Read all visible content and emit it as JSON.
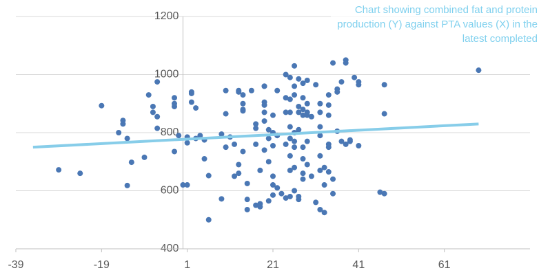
{
  "chart_data": {
    "type": "scatter",
    "annotation": "Chart showing combined fat and protein production (Y) against PTA values (X) in the latest completed",
    "xlim": [
      -39,
      81
    ],
    "xticks": [
      -39,
      -19,
      1,
      21,
      41,
      61
    ],
    "ylim": [
      400,
      1200
    ],
    "yticks": [
      400,
      600,
      800,
      1000,
      1200
    ],
    "grid": true,
    "series": [
      {
        "color": "#4a77b4",
        "x": [
          -29,
          -24,
          -19,
          -15,
          -14,
          -14,
          -13,
          -13,
          -12,
          -9,
          -8,
          -7,
          -7,
          -6,
          -6,
          -6,
          -2,
          -2,
          -2,
          -2,
          0,
          -1,
          1,
          1,
          1,
          2,
          2,
          2,
          3,
          3,
          4,
          5,
          5,
          6,
          6,
          9,
          9,
          10,
          10,
          10,
          11,
          12,
          12,
          13,
          13,
          13,
          13,
          14,
          14,
          14,
          14,
          14,
          15,
          15,
          15,
          16,
          17,
          17,
          17,
          17,
          18,
          18,
          18,
          19,
          19,
          19,
          19,
          19,
          19,
          19,
          20,
          20,
          20,
          20,
          21,
          21,
          21,
          21,
          21,
          21,
          22,
          22,
          22,
          23,
          24,
          24,
          24,
          24,
          24,
          25,
          25,
          25,
          25,
          25,
          25,
          25,
          25,
          26,
          26,
          26,
          26,
          26,
          26,
          26,
          26,
          27,
          27,
          27,
          27,
          27,
          27,
          28,
          28,
          28,
          28,
          28,
          28,
          28,
          28,
          29,
          29,
          29,
          29,
          29,
          29,
          30,
          30,
          31,
          31,
          32,
          32,
          32,
          32,
          32,
          32,
          32,
          33,
          33,
          33,
          34,
          34,
          34,
          34,
          34,
          34,
          35,
          35,
          35,
          36,
          36,
          36,
          37,
          37,
          38,
          38,
          38,
          39,
          39,
          40,
          41,
          41,
          41,
          46,
          47,
          47,
          47,
          69
        ],
        "values": [
          672,
          660,
          893,
          800,
          830,
          842,
          780,
          618,
          698,
          715,
          930,
          890,
          870,
          975,
          855,
          815,
          920,
          890,
          900,
          735,
          620,
          790,
          785,
          765,
          620,
          940,
          935,
          905,
          885,
          780,
          790,
          775,
          710,
          652,
          500,
          572,
          795,
          750,
          865,
          945,
          785,
          760,
          650,
          945,
          940,
          690,
          660,
          900,
          880,
          875,
          930,
          735,
          570,
          625,
          535,
          945,
          830,
          815,
          760,
          550,
          555,
          545,
          670,
          960,
          960,
          905,
          895,
          870,
          840,
          740,
          810,
          780,
          700,
          565,
          860,
          800,
          755,
          650,
          620,
          585,
          945,
          790,
          610,
          590,
          1000,
          920,
          870,
          760,
          575,
          990,
          915,
          870,
          820,
          780,
          720,
          670,
          580,
          1030,
          960,
          930,
          800,
          770,
          750,
          680,
          600,
          985,
          890,
          870,
          810,
          580,
          570,
          970,
          920,
          880,
          860,
          750,
          710,
          660,
          640,
          980,
          900,
          870,
          860,
          770,
          690,
          855,
          650,
          965,
          560,
          900,
          870,
          820,
          790,
          720,
          670,
          535,
          680,
          620,
          525,
          930,
          895,
          860,
          760,
          750,
          665,
          1040,
          640,
          590,
          950,
          940,
          805,
          975,
          770,
          760,
          1050,
          1040,
          775,
          770,
          990,
          975,
          965,
          755,
          595,
          590,
          965,
          865,
          1015
        ]
      }
    ],
    "trendline": {
      "color": "#87cde9",
      "x": [
        -35,
        69
      ],
      "values": [
        750,
        830
      ]
    }
  }
}
